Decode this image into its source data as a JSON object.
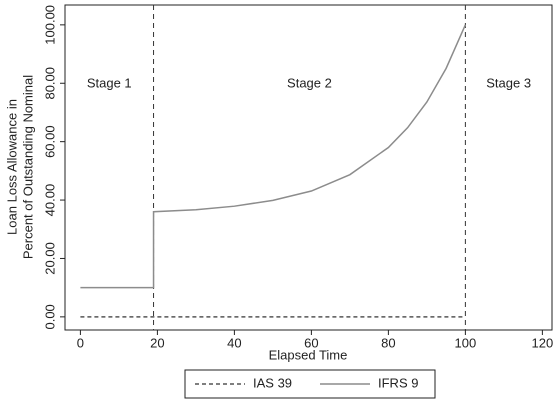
{
  "chart_data": {
    "type": "line",
    "xlabel": "Elapsed Time",
    "ylabel": [
      "Loan Loss Allowance in",
      "Percent of Outstanding Nominal"
    ],
    "annotations": [
      "Stage 1",
      "Stage 2",
      "Stage 3"
    ],
    "vlines": [
      19,
      100
    ],
    "xlim": [
      -4,
      122.5
    ],
    "ylim": [
      -4.5,
      106.8
    ],
    "xticks": [
      0,
      20,
      40,
      60,
      80,
      100,
      120
    ],
    "yticks": [
      {
        "value": 0,
        "label": "0.00"
      },
      {
        "value": 20,
        "label": "20.00"
      },
      {
        "value": 40,
        "label": "40.00"
      },
      {
        "value": 60,
        "label": "60.00"
      },
      {
        "value": 80,
        "label": "80.00"
      },
      {
        "value": 100,
        "label": "100.00"
      }
    ],
    "legend": "bottom",
    "series": [
      {
        "name": "IAS 39",
        "color": "#555555",
        "dashed": true,
        "x": [
          0,
          100
        ],
        "values": [
          0,
          0
        ]
      },
      {
        "name": "IFRS 9",
        "color": "#8c8c8c",
        "dashed": false,
        "x": [
          0,
          19,
          19,
          30,
          40,
          50,
          60,
          70,
          80,
          85,
          90,
          95,
          100
        ],
        "values": [
          10,
          10,
          36,
          36.7,
          37.9,
          39.9,
          43.1,
          48.7,
          58.0,
          64.8,
          73.6,
          85.1,
          100
        ]
      }
    ]
  }
}
